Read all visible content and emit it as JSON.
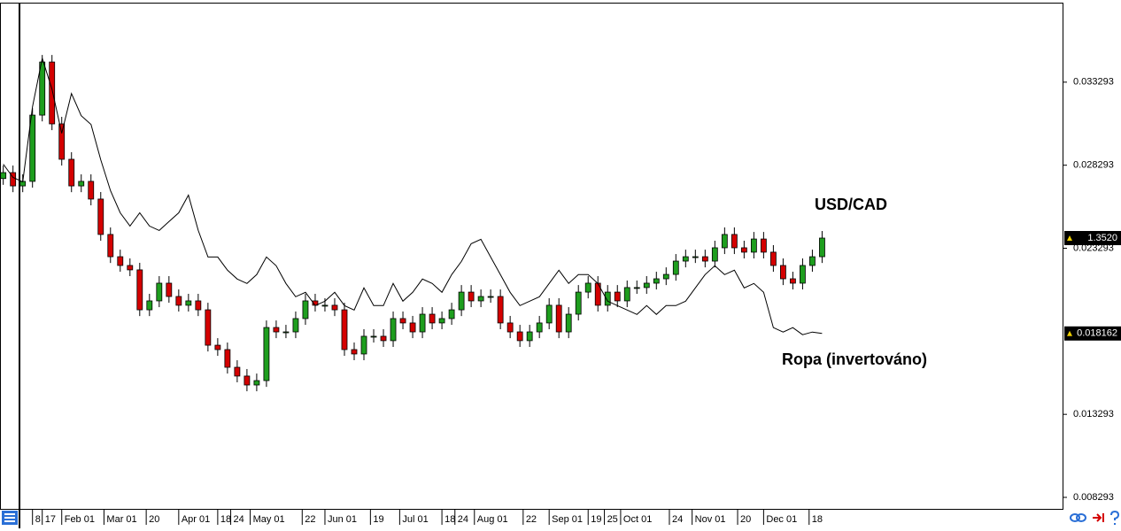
{
  "chart_data": {
    "type": "candlestick",
    "xlim": [
      -1,
      326
    ],
    "xticks": [
      {
        "value": 9,
        "label": "8"
      },
      {
        "value": 12,
        "label": "17"
      },
      {
        "value": 18,
        "label": "Feb 01"
      },
      {
        "value": 31,
        "label": "Mar 01"
      },
      {
        "value": 44,
        "label": "20"
      },
      {
        "value": 54,
        "label": "Apr 01"
      },
      {
        "value": 66,
        "label": "18"
      },
      {
        "value": 70,
        "label": "24"
      },
      {
        "value": 76,
        "label": "May 01"
      },
      {
        "value": 92,
        "label": "22"
      },
      {
        "value": 99,
        "label": "Jun 01"
      },
      {
        "value": 113,
        "label": "19"
      },
      {
        "value": 122,
        "label": "Jul 01"
      },
      {
        "value": 135,
        "label": "18"
      },
      {
        "value": 139,
        "label": "24"
      },
      {
        "value": 145,
        "label": "Aug 01"
      },
      {
        "value": 160,
        "label": "22"
      },
      {
        "value": 168,
        "label": "Sep 01"
      },
      {
        "value": 180,
        "label": "19"
      },
      {
        "value": 185,
        "label": "25"
      },
      {
        "value": 190,
        "label": "Oct 01"
      },
      {
        "value": 205,
        "label": "24"
      },
      {
        "value": 212,
        "label": "Nov 01"
      },
      {
        "value": 226,
        "label": "20"
      },
      {
        "value": 234,
        "label": "Dec 01"
      },
      {
        "value": 248,
        "label": "18"
      }
    ],
    "ylim": [
      0.007601,
      0.03808
    ],
    "yticks": [
      0.033293,
      0.028293,
      0.023293,
      0.013293,
      0.008293
    ],
    "y2lim": [
      1.1791,
      1.5023
    ],
    "x": [
      0,
      3,
      6,
      9,
      12,
      15,
      18,
      21,
      24,
      27,
      30,
      33,
      36,
      39,
      42,
      45,
      48,
      51,
      54,
      57,
      60,
      63,
      66,
      69,
      72,
      75,
      78,
      81,
      84,
      87,
      90,
      93,
      96,
      99,
      102,
      105,
      108,
      111,
      114,
      117,
      120,
      123,
      126,
      129,
      132,
      135,
      138,
      141,
      144,
      147,
      150,
      153,
      156,
      159,
      162,
      165,
      168,
      171,
      174,
      177,
      180,
      183,
      186,
      189,
      192,
      195,
      198,
      201,
      204,
      207,
      210,
      213,
      216,
      219,
      222,
      225,
      228,
      231,
      234,
      237,
      240,
      243,
      246,
      249,
      252
    ],
    "series": [
      {
        "name": "USD/CAD",
        "type": "candlestick",
        "axis": "y2",
        "up_color": "#1e9e1e",
        "down_color": "#d40000",
        "open": [
          1.39,
          1.3938,
          1.3853,
          1.3882,
          1.4305,
          1.4644,
          1.4249,
          1.4023,
          1.3853,
          1.3882,
          1.3769,
          1.3543,
          1.3401,
          1.3345,
          1.3317,
          1.3062,
          1.3119,
          1.3232,
          1.3147,
          1.3091,
          1.3119,
          1.3062,
          1.2836,
          1.2808,
          1.2695,
          1.2639,
          1.2582,
          1.261,
          1.2949,
          1.2921,
          1.2921,
          1.3006,
          1.3119,
          1.3091,
          1.3091,
          1.3062,
          1.2808,
          1.278,
          1.2893,
          1.2893,
          1.2865,
          1.3006,
          1.2978,
          1.2921,
          1.3034,
          1.2978,
          1.3006,
          1.3062,
          1.3175,
          1.3119,
          1.3147,
          1.3147,
          1.2978,
          1.2921,
          1.2865,
          1.2921,
          1.2978,
          1.3091,
          1.2921,
          1.3034,
          1.3175,
          1.3232,
          1.3091,
          1.3175,
          1.3119,
          1.3204,
          1.3204,
          1.3232,
          1.326,
          1.3288,
          1.3373,
          1.3401,
          1.3401,
          1.3373,
          1.3458,
          1.3543,
          1.3458,
          1.343,
          1.3514,
          1.343,
          1.3345,
          1.326,
          1.3232,
          1.3345,
          1.3401
        ],
        "high": [
          1.3983,
          1.3983,
          1.3927,
          1.435,
          1.4689,
          1.4689,
          1.4294,
          1.4068,
          1.3927,
          1.3927,
          1.3814,
          1.3588,
          1.3446,
          1.339,
          1.3362,
          1.3164,
          1.3277,
          1.3277,
          1.3192,
          1.3164,
          1.3164,
          1.3107,
          1.2881,
          1.2853,
          1.274,
          1.2684,
          1.2655,
          1.2994,
          1.2994,
          1.2966,
          1.3051,
          1.3164,
          1.3164,
          1.3136,
          1.3136,
          1.3107,
          1.2853,
          1.2938,
          1.2938,
          1.2938,
          1.3051,
          1.3051,
          1.3023,
          1.3079,
          1.3079,
          1.3051,
          1.3107,
          1.322,
          1.322,
          1.3192,
          1.3192,
          1.3192,
          1.3023,
          1.2966,
          1.2966,
          1.3023,
          1.3136,
          1.3136,
          1.3079,
          1.322,
          1.3277,
          1.3277,
          1.322,
          1.322,
          1.3249,
          1.3249,
          1.3277,
          1.3305,
          1.3333,
          1.3418,
          1.3446,
          1.3446,
          1.3446,
          1.3503,
          1.3588,
          1.3588,
          1.3503,
          1.3559,
          1.3559,
          1.3475,
          1.339,
          1.3305,
          1.339,
          1.3446,
          1.3565
        ],
        "low": [
          1.386,
          1.3813,
          1.3813,
          1.3842,
          1.4265,
          1.4209,
          1.3983,
          1.3813,
          1.3813,
          1.3729,
          1.3503,
          1.3361,
          1.3305,
          1.3277,
          1.3022,
          1.3022,
          1.3079,
          1.3107,
          1.3051,
          1.3051,
          1.3022,
          1.2796,
          1.2768,
          1.2655,
          1.2599,
          1.2542,
          1.2542,
          1.257,
          1.2881,
          1.2881,
          1.2881,
          1.2966,
          1.3051,
          1.3051,
          1.3022,
          1.2768,
          1.274,
          1.274,
          1.2853,
          1.2825,
          1.2825,
          1.2938,
          1.2881,
          1.2881,
          1.2938,
          1.2938,
          1.2966,
          1.3022,
          1.3079,
          1.3079,
          1.3107,
          1.2938,
          1.2881,
          1.2825,
          1.2825,
          1.2881,
          1.2938,
          1.2881,
          1.2881,
          1.2994,
          1.3135,
          1.3051,
          1.3051,
          1.3079,
          1.3079,
          1.3164,
          1.3164,
          1.3192,
          1.322,
          1.3248,
          1.3333,
          1.3361,
          1.3333,
          1.3333,
          1.3418,
          1.3418,
          1.339,
          1.339,
          1.339,
          1.3305,
          1.322,
          1.3192,
          1.3192,
          1.3305,
          1.3361
        ],
        "close": [
          1.3938,
          1.3853,
          1.3882,
          1.4305,
          1.4644,
          1.4249,
          1.4023,
          1.3853,
          1.3882,
          1.3769,
          1.3543,
          1.3401,
          1.3345,
          1.3317,
          1.3062,
          1.3119,
          1.3232,
          1.3147,
          1.3091,
          1.3119,
          1.3062,
          1.2836,
          1.2808,
          1.2695,
          1.2639,
          1.2582,
          1.261,
          1.2949,
          1.2921,
          1.2921,
          1.3006,
          1.3119,
          1.3091,
          1.3091,
          1.3062,
          1.2808,
          1.278,
          1.2893,
          1.2893,
          1.2865,
          1.3006,
          1.2978,
          1.2921,
          1.3034,
          1.2978,
          1.3006,
          1.3062,
          1.3175,
          1.3119,
          1.3147,
          1.3147,
          1.2978,
          1.2921,
          1.2865,
          1.2921,
          1.2978,
          1.3091,
          1.2921,
          1.3034,
          1.3175,
          1.3232,
          1.3091,
          1.3175,
          1.3119,
          1.3204,
          1.3204,
          1.3232,
          1.326,
          1.3288,
          1.3373,
          1.3401,
          1.3401,
          1.3373,
          1.3458,
          1.3543,
          1.3458,
          1.343,
          1.3514,
          1.343,
          1.3345,
          1.326,
          1.3232,
          1.3345,
          1.3401,
          1.352
        ],
        "last_value": {
          "value": 1.352,
          "label": "1.3520"
        }
      },
      {
        "name": "Ropa (invertováno)",
        "type": "line",
        "color": "#000000",
        "values": [
          0.028353,
          0.027555,
          0.027289,
          0.03181,
          0.034735,
          0.032874,
          0.030214,
          0.032608,
          0.031278,
          0.030746,
          0.028619,
          0.026757,
          0.025427,
          0.024629,
          0.025427,
          0.024629,
          0.024363,
          0.024895,
          0.025427,
          0.026491,
          0.024363,
          0.022768,
          0.022768,
          0.02197,
          0.021438,
          0.021172,
          0.021704,
          0.022768,
          0.022236,
          0.021172,
          0.020374,
          0.02064,
          0.019842,
          0.020108,
          0.02064,
          0.019842,
          0.019576,
          0.020906,
          0.019842,
          0.019842,
          0.021172,
          0.020108,
          0.02064,
          0.021438,
          0.021172,
          0.02064,
          0.021704,
          0.022502,
          0.023566,
          0.023831,
          0.022768,
          0.021704,
          0.02064,
          0.019842,
          0.020108,
          0.020374,
          0.021172,
          0.02197,
          0.021172,
          0.021704,
          0.021704,
          0.021172,
          0.020108,
          0.019842,
          0.019576,
          0.01931,
          0.019842,
          0.01931,
          0.019842,
          0.019842,
          0.020108,
          0.020906,
          0.021704,
          0.022236,
          0.021704,
          0.02197,
          0.020906,
          0.021172,
          0.02064,
          0.018512,
          0.018247,
          0.018512,
          0.018087,
          0.018247,
          0.018162
        ],
        "last_value": 0.018162
      }
    ]
  }
}
